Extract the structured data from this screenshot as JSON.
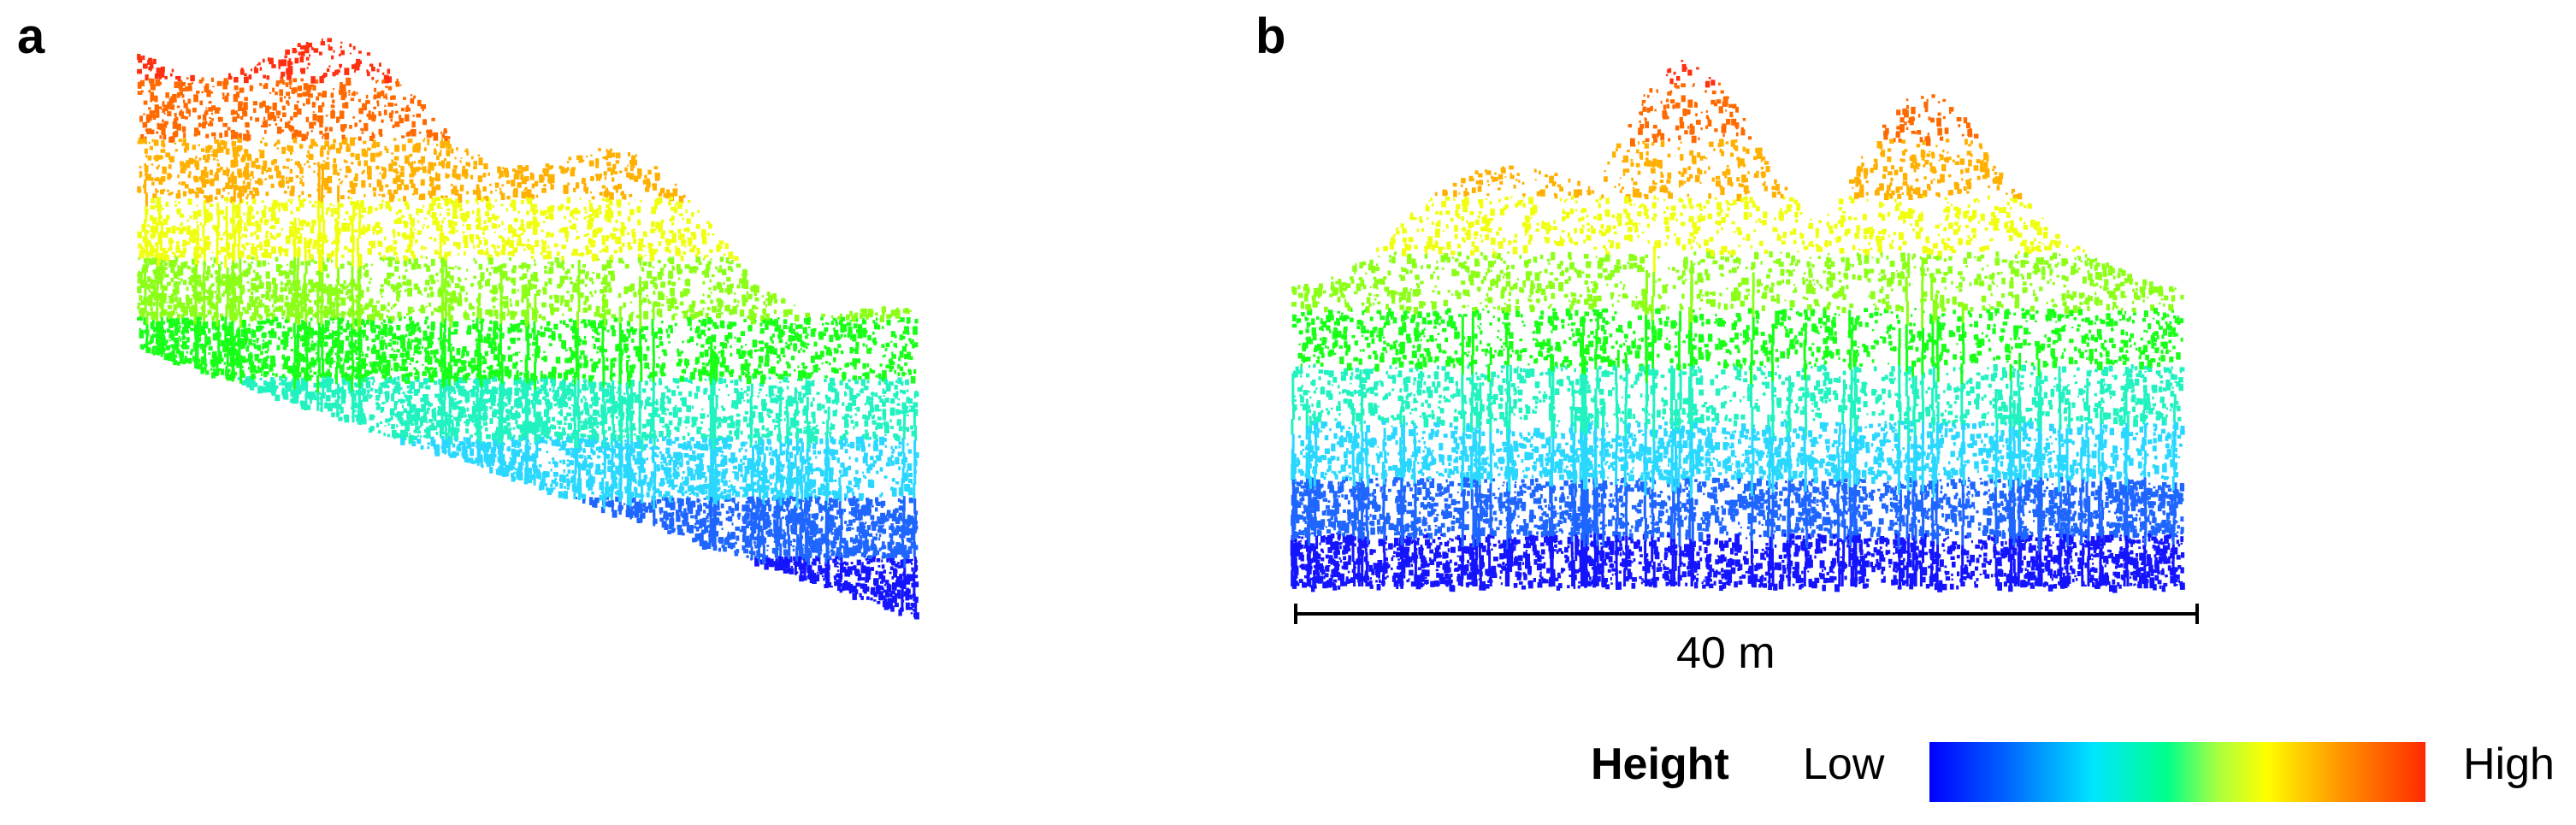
{
  "panels": {
    "a": {
      "label": "a"
    },
    "b": {
      "label": "b"
    }
  },
  "scale_bar": {
    "label": "40 m"
  },
  "legend": {
    "title": "Height",
    "low_label": "Low",
    "high_label": "High",
    "gradient_colors": [
      "#0000ff",
      "#0060ff",
      "#00e6ff",
      "#00ff8a",
      "#a8ff40",
      "#ffff00",
      "#ff9a00",
      "#ff2a00"
    ]
  },
  "height_palette": [
    "#1414ff",
    "#1e66ff",
    "#2ad8ff",
    "#21f2c0",
    "#18ff18",
    "#8cff18",
    "#f0ff10",
    "#ffb000",
    "#ff6a00",
    "#ff3010"
  ]
}
